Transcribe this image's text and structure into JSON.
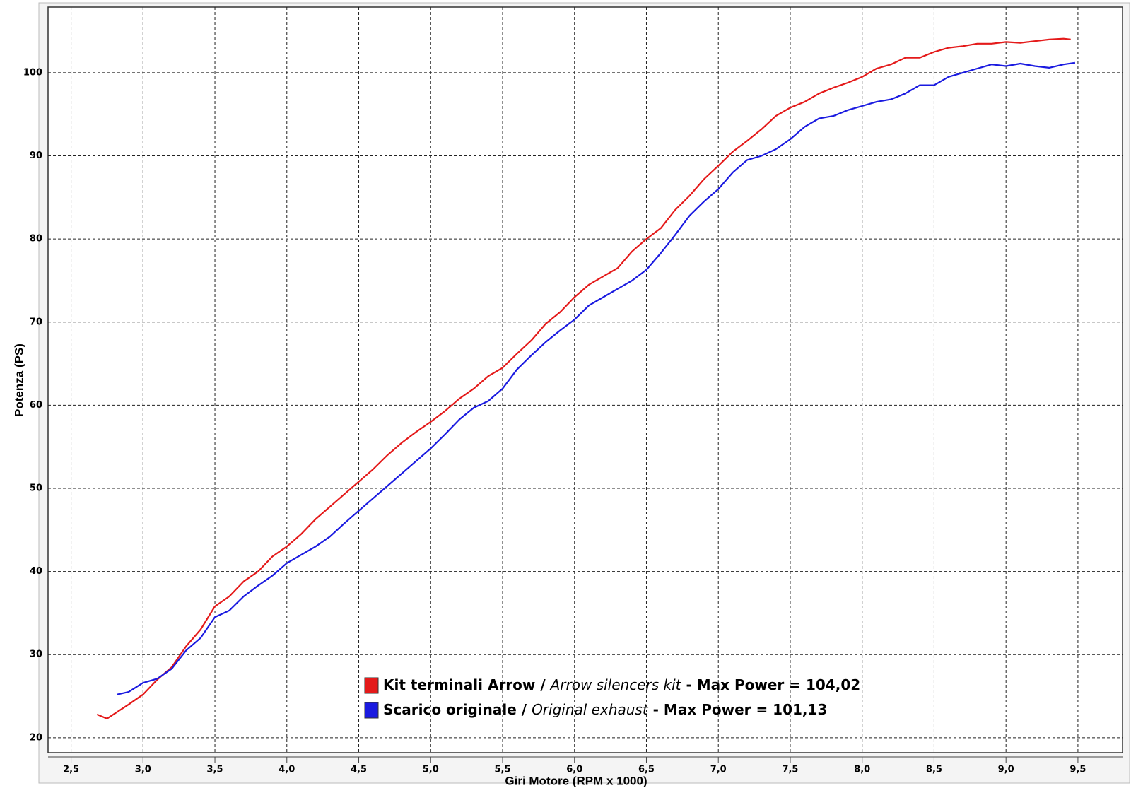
{
  "chart_data": {
    "type": "line",
    "xlabel": "Giri Motore (RPM x 1000)",
    "ylabel": "Potenza (PS)",
    "xlim": [
      2.34,
      9.81
    ],
    "ylim": [
      18.2,
      107.9
    ],
    "xticks": [
      {
        "value": 2.5,
        "label": "2,5"
      },
      {
        "value": 3.0,
        "label": "3,0"
      },
      {
        "value": 3.5,
        "label": "3,5"
      },
      {
        "value": 4.0,
        "label": "4,0"
      },
      {
        "value": 4.5,
        "label": "4,5"
      },
      {
        "value": 5.0,
        "label": "5,0"
      },
      {
        "value": 5.5,
        "label": "5,5"
      },
      {
        "value": 6.0,
        "label": "6,0"
      },
      {
        "value": 6.5,
        "label": "6,5"
      },
      {
        "value": 7.0,
        "label": "7,0"
      },
      {
        "value": 7.5,
        "label": "7,5"
      },
      {
        "value": 8.0,
        "label": "8,0"
      },
      {
        "value": 8.5,
        "label": "8,5"
      },
      {
        "value": 9.0,
        "label": "9,0"
      },
      {
        "value": 9.5,
        "label": "9,5"
      }
    ],
    "yticks": [
      20,
      30,
      40,
      50,
      60,
      70,
      80,
      90,
      100
    ],
    "grid": true,
    "series": [
      {
        "name": "Kit terminali Arrow / Arrow silencers kit - Max Power = 104,02",
        "color": "#e41a1a",
        "x": [
          2.68,
          2.75,
          2.9,
          3.0,
          3.1,
          3.2,
          3.3,
          3.4,
          3.5,
          3.6,
          3.7,
          3.8,
          3.9,
          4.0,
          4.1,
          4.2,
          4.3,
          4.4,
          4.5,
          4.6,
          4.7,
          4.8,
          4.9,
          5.0,
          5.1,
          5.2,
          5.3,
          5.4,
          5.5,
          5.6,
          5.7,
          5.8,
          5.9,
          6.0,
          6.1,
          6.2,
          6.3,
          6.4,
          6.5,
          6.6,
          6.7,
          6.8,
          6.9,
          7.0,
          7.1,
          7.2,
          7.3,
          7.4,
          7.5,
          7.6,
          7.7,
          7.8,
          7.9,
          8.0,
          8.1,
          8.2,
          8.3,
          8.4,
          8.5,
          8.6,
          8.7,
          8.8,
          8.9,
          9.0,
          9.1,
          9.2,
          9.3,
          9.4,
          9.45
        ],
        "values": [
          22.8,
          22.3,
          24,
          25.2,
          27,
          28.5,
          31,
          33,
          35.8,
          37,
          38.8,
          40,
          41.8,
          43,
          44.5,
          46.3,
          47.8,
          49.3,
          50.8,
          52.3,
          54,
          55.5,
          56.8,
          58,
          59.3,
          60.8,
          62,
          63.5,
          64.5,
          66.2,
          67.8,
          69.8,
          71.2,
          73,
          74.5,
          75.5,
          76.5,
          78.5,
          80,
          81.3,
          83.5,
          85.2,
          87.2,
          88.8,
          90.5,
          91.8,
          93.2,
          94.8,
          95.8,
          96.5,
          97.5,
          98.2,
          98.8,
          99.5,
          100.5,
          101,
          101.8,
          101.8,
          102.5,
          103,
          103.2,
          103.5,
          103.5,
          103.7,
          103.6,
          103.8,
          104,
          104.1,
          104
        ]
      },
      {
        "name": "Scarico originale / Original exhaust - Max Power = 101,13",
        "color": "#1a1ae0",
        "x": [
          2.82,
          2.9,
          3.0,
          3.1,
          3.2,
          3.3,
          3.4,
          3.5,
          3.6,
          3.7,
          3.8,
          3.9,
          4.0,
          4.1,
          4.2,
          4.3,
          4.4,
          4.5,
          4.6,
          4.7,
          4.8,
          4.9,
          5.0,
          5.1,
          5.2,
          5.3,
          5.4,
          5.5,
          5.6,
          5.7,
          5.8,
          5.9,
          6.0,
          6.1,
          6.2,
          6.3,
          6.4,
          6.5,
          6.6,
          6.7,
          6.8,
          6.9,
          7.0,
          7.1,
          7.2,
          7.3,
          7.4,
          7.5,
          7.6,
          7.7,
          7.8,
          7.9,
          8.0,
          8.1,
          8.2,
          8.3,
          8.4,
          8.5,
          8.6,
          8.7,
          8.8,
          8.9,
          9.0,
          9.1,
          9.2,
          9.3,
          9.4,
          9.48
        ],
        "values": [
          25.2,
          25.5,
          26.6,
          27.1,
          28.3,
          30.5,
          32,
          34.5,
          35.3,
          37,
          38.3,
          39.5,
          41,
          42,
          43,
          44.2,
          45.8,
          47.3,
          48.8,
          50.3,
          51.8,
          53.3,
          54.8,
          56.5,
          58.3,
          59.7,
          60.5,
          62,
          64.3,
          66,
          67.6,
          69,
          70.3,
          72,
          73,
          74,
          75,
          76.3,
          78.3,
          80.5,
          82.8,
          84.5,
          86,
          88,
          89.5,
          90,
          90.8,
          92,
          93.5,
          94.5,
          94.8,
          95.5,
          96,
          96.5,
          96.8,
          97.5,
          98.5,
          98.5,
          99.5,
          100,
          100.5,
          101,
          100.8,
          101.1,
          100.8,
          100.6,
          101,
          101.2
        ]
      }
    ]
  }
}
